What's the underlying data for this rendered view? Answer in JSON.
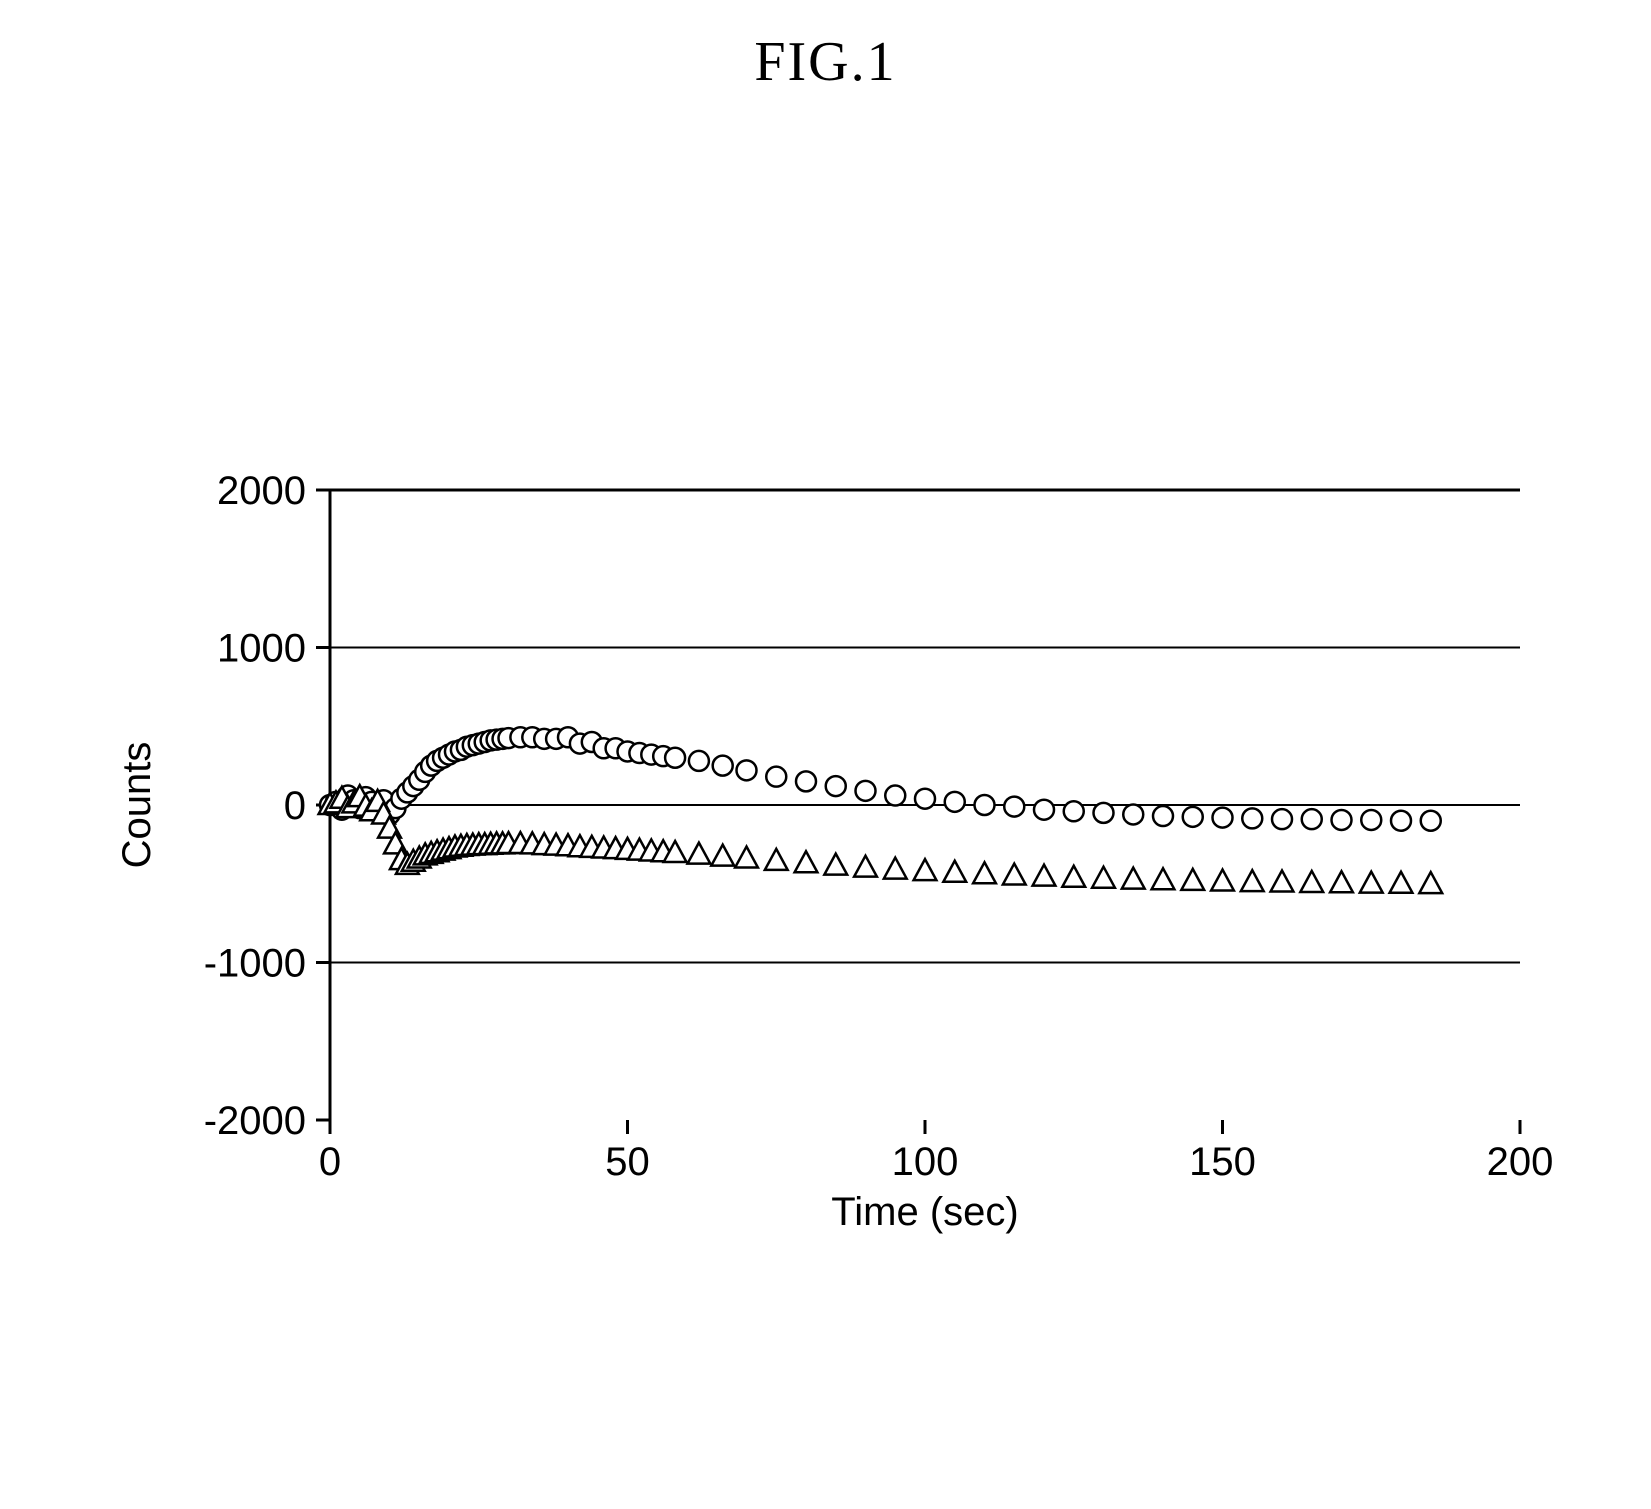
{
  "figure": {
    "title": "FIG.1",
    "title_fontsize": 56,
    "title_font": "Times New Roman, serif",
    "title_color": "#000000"
  },
  "chart": {
    "type": "scatter",
    "background_color": "#ffffff",
    "grid_color": "#000000",
    "axis_color": "#000000",
    "axis_width": 3,
    "x": {
      "label": "Time (sec)",
      "min": 0,
      "max": 200,
      "tick_step": 50,
      "ticks": [
        0,
        50,
        100,
        150,
        200
      ],
      "gridlines": false,
      "label_fontsize": 40,
      "tick_fontsize": 40
    },
    "y": {
      "label": "Counts",
      "min": -2000,
      "max": 2000,
      "tick_step": 1000,
      "ticks": [
        -2000,
        -1000,
        0,
        1000,
        2000
      ],
      "gridlines": true,
      "label_fontsize": 40,
      "tick_fontsize": 40
    },
    "series": [
      {
        "name": "circles",
        "marker": "circle",
        "marker_fill": "#ffffff",
        "marker_stroke": "#000000",
        "marker_stroke_width": 2.5,
        "marker_size": 20,
        "data": [
          {
            "x": 0,
            "y": 0
          },
          {
            "x": 1,
            "y": 20
          },
          {
            "x": 2,
            "y": -30
          },
          {
            "x": 3,
            "y": 60
          },
          {
            "x": 4,
            "y": 30
          },
          {
            "x": 5,
            "y": -20
          },
          {
            "x": 6,
            "y": 50
          },
          {
            "x": 7,
            "y": 20
          },
          {
            "x": 8,
            "y": -40
          },
          {
            "x": 9,
            "y": 30
          },
          {
            "x": 10,
            "y": -60
          },
          {
            "x": 11,
            "y": -20
          },
          {
            "x": 12,
            "y": 40
          },
          {
            "x": 13,
            "y": 80
          },
          {
            "x": 14,
            "y": 120
          },
          {
            "x": 15,
            "y": 160
          },
          {
            "x": 16,
            "y": 210
          },
          {
            "x": 17,
            "y": 250
          },
          {
            "x": 18,
            "y": 280
          },
          {
            "x": 19,
            "y": 300
          },
          {
            "x": 20,
            "y": 320
          },
          {
            "x": 21,
            "y": 340
          },
          {
            "x": 22,
            "y": 350
          },
          {
            "x": 23,
            "y": 370
          },
          {
            "x": 24,
            "y": 380
          },
          {
            "x": 25,
            "y": 390
          },
          {
            "x": 26,
            "y": 400
          },
          {
            "x": 27,
            "y": 410
          },
          {
            "x": 28,
            "y": 415
          },
          {
            "x": 29,
            "y": 420
          },
          {
            "x": 30,
            "y": 425
          },
          {
            "x": 32,
            "y": 430
          },
          {
            "x": 34,
            "y": 430
          },
          {
            "x": 36,
            "y": 420
          },
          {
            "x": 38,
            "y": 420
          },
          {
            "x": 40,
            "y": 430
          },
          {
            "x": 42,
            "y": 390
          },
          {
            "x": 44,
            "y": 400
          },
          {
            "x": 46,
            "y": 360
          },
          {
            "x": 48,
            "y": 360
          },
          {
            "x": 50,
            "y": 340
          },
          {
            "x": 52,
            "y": 330
          },
          {
            "x": 54,
            "y": 320
          },
          {
            "x": 56,
            "y": 310
          },
          {
            "x": 58,
            "y": 300
          },
          {
            "x": 62,
            "y": 280
          },
          {
            "x": 66,
            "y": 250
          },
          {
            "x": 70,
            "y": 220
          },
          {
            "x": 75,
            "y": 180
          },
          {
            "x": 80,
            "y": 150
          },
          {
            "x": 85,
            "y": 120
          },
          {
            "x": 90,
            "y": 90
          },
          {
            "x": 95,
            "y": 60
          },
          {
            "x": 100,
            "y": 40
          },
          {
            "x": 105,
            "y": 20
          },
          {
            "x": 110,
            "y": 0
          },
          {
            "x": 115,
            "y": -10
          },
          {
            "x": 120,
            "y": -30
          },
          {
            "x": 125,
            "y": -40
          },
          {
            "x": 130,
            "y": -50
          },
          {
            "x": 135,
            "y": -60
          },
          {
            "x": 140,
            "y": -70
          },
          {
            "x": 145,
            "y": -75
          },
          {
            "x": 150,
            "y": -80
          },
          {
            "x": 155,
            "y": -85
          },
          {
            "x": 160,
            "y": -90
          },
          {
            "x": 165,
            "y": -90
          },
          {
            "x": 170,
            "y": -95
          },
          {
            "x": 175,
            "y": -95
          },
          {
            "x": 180,
            "y": -100
          },
          {
            "x": 185,
            "y": -100
          }
        ]
      },
      {
        "name": "triangles",
        "marker": "triangle",
        "marker_fill": "#ffffff",
        "marker_stroke": "#000000",
        "marker_stroke_width": 2.5,
        "marker_size": 20,
        "data": [
          {
            "x": 0,
            "y": 0
          },
          {
            "x": 1,
            "y": 10
          },
          {
            "x": 2,
            "y": 40
          },
          {
            "x": 3,
            "y": -20
          },
          {
            "x": 4,
            "y": 10
          },
          {
            "x": 5,
            "y": 50
          },
          {
            "x": 6,
            "y": -10
          },
          {
            "x": 7,
            "y": -40
          },
          {
            "x": 8,
            "y": 20
          },
          {
            "x": 9,
            "y": -60
          },
          {
            "x": 10,
            "y": -150
          },
          {
            "x": 11,
            "y": -250
          },
          {
            "x": 12,
            "y": -350
          },
          {
            "x": 13,
            "y": -380
          },
          {
            "x": 14,
            "y": -360
          },
          {
            "x": 15,
            "y": -340
          },
          {
            "x": 16,
            "y": -320
          },
          {
            "x": 17,
            "y": -310
          },
          {
            "x": 18,
            "y": -300
          },
          {
            "x": 19,
            "y": -290
          },
          {
            "x": 20,
            "y": -280
          },
          {
            "x": 21,
            "y": -270
          },
          {
            "x": 22,
            "y": -265
          },
          {
            "x": 23,
            "y": -260
          },
          {
            "x": 24,
            "y": -258
          },
          {
            "x": 25,
            "y": -255
          },
          {
            "x": 26,
            "y": -255
          },
          {
            "x": 27,
            "y": -252
          },
          {
            "x": 28,
            "y": -250
          },
          {
            "x": 29,
            "y": -250
          },
          {
            "x": 30,
            "y": -248
          },
          {
            "x": 32,
            "y": -248
          },
          {
            "x": 34,
            "y": -250
          },
          {
            "x": 36,
            "y": -255
          },
          {
            "x": 38,
            "y": -258
          },
          {
            "x": 40,
            "y": -262
          },
          {
            "x": 42,
            "y": -268
          },
          {
            "x": 44,
            "y": -272
          },
          {
            "x": 46,
            "y": -276
          },
          {
            "x": 48,
            "y": -280
          },
          {
            "x": 50,
            "y": -285
          },
          {
            "x": 52,
            "y": -290
          },
          {
            "x": 54,
            "y": -295
          },
          {
            "x": 56,
            "y": -300
          },
          {
            "x": 58,
            "y": -305
          },
          {
            "x": 62,
            "y": -315
          },
          {
            "x": 66,
            "y": -328
          },
          {
            "x": 70,
            "y": -340
          },
          {
            "x": 75,
            "y": -355
          },
          {
            "x": 80,
            "y": -370
          },
          {
            "x": 85,
            "y": -385
          },
          {
            "x": 90,
            "y": -398
          },
          {
            "x": 95,
            "y": -410
          },
          {
            "x": 100,
            "y": -420
          },
          {
            "x": 105,
            "y": -430
          },
          {
            "x": 110,
            "y": -440
          },
          {
            "x": 115,
            "y": -448
          },
          {
            "x": 120,
            "y": -455
          },
          {
            "x": 125,
            "y": -462
          },
          {
            "x": 130,
            "y": -468
          },
          {
            "x": 135,
            "y": -474
          },
          {
            "x": 140,
            "y": -478
          },
          {
            "x": 145,
            "y": -482
          },
          {
            "x": 150,
            "y": -486
          },
          {
            "x": 155,
            "y": -490
          },
          {
            "x": 160,
            "y": -492
          },
          {
            "x": 165,
            "y": -495
          },
          {
            "x": 170,
            "y": -497
          },
          {
            "x": 175,
            "y": -499
          },
          {
            "x": 180,
            "y": -500
          },
          {
            "x": 185,
            "y": -502
          }
        ]
      }
    ]
  }
}
